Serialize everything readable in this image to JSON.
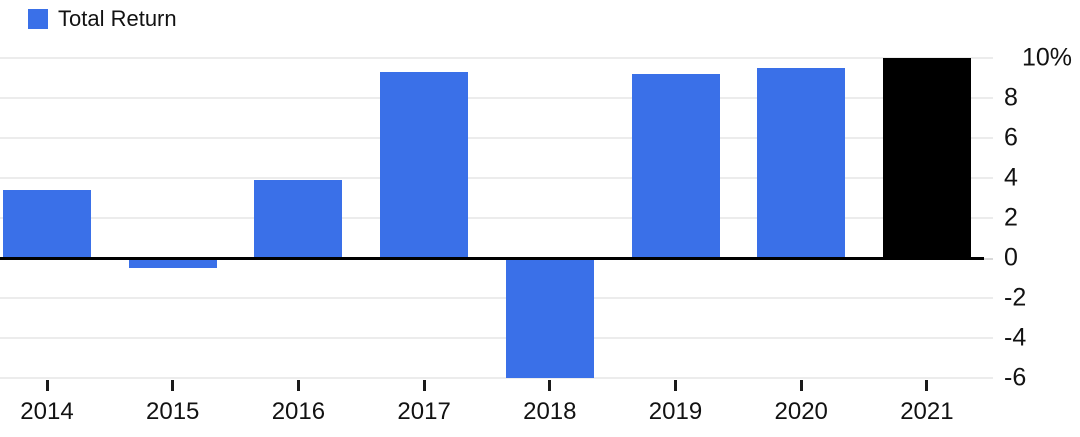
{
  "legend": {
    "label": "Total Return"
  },
  "chart_data": {
    "type": "bar",
    "title": "",
    "categories": [
      "2014",
      "2015",
      "2016",
      "2017",
      "2018",
      "2019",
      "2020",
      "2021"
    ],
    "series": [
      {
        "name": "Total Return",
        "values": [
          3.4,
          -0.5,
          3.9,
          9.3,
          -6.0,
          9.2,
          9.5,
          10.0
        ]
      }
    ],
    "unit": "%",
    "bar_colors": [
      "#3a70e8",
      "#3a70e8",
      "#3a70e8",
      "#3a70e8",
      "#3a70e8",
      "#3a70e8",
      "#3a70e8",
      "#000000"
    ],
    "highlight_category": "2021",
    "ylim": [
      -6.1,
      10.5
    ],
    "yticks": [
      {
        "value": 10,
        "label": "10%"
      },
      {
        "value": 8,
        "label": "8"
      },
      {
        "value": 6,
        "label": "6"
      },
      {
        "value": 4,
        "label": "4"
      },
      {
        "value": 2,
        "label": "2"
      },
      {
        "value": 0,
        "label": "0"
      },
      {
        "value": -2,
        "label": "-2"
      },
      {
        "value": -4,
        "label": "-4"
      },
      {
        "value": -6,
        "label": "-6"
      }
    ],
    "grid": "horizontal",
    "legend_position": "top-left",
    "y_axis_side": "right",
    "colors": {
      "bar_default": "#3a70e8",
      "bar_highlight": "#000000",
      "gridline": "#ececec",
      "zero_line": "#000000",
      "text": "#121212",
      "background": "#ffffff"
    }
  }
}
